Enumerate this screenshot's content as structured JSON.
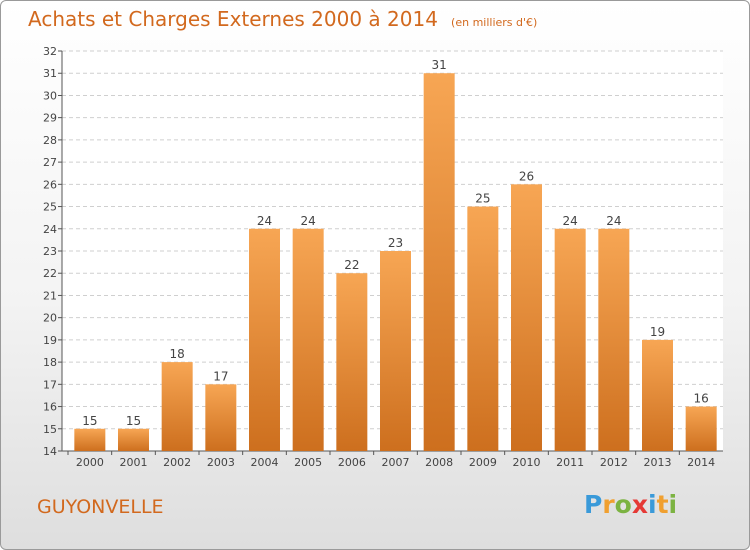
{
  "title": "Achats et Charges Externes 2000 à 2014",
  "subtitle": "(en milliers d'€)",
  "commune": "GUYONVELLE",
  "logo": {
    "letters": [
      "P",
      "r",
      "o",
      "x",
      "i",
      "t",
      "i"
    ],
    "colors": [
      "#3a9ad9",
      "#f0a030",
      "#7cb342",
      "#e53935",
      "#3a9ad9",
      "#f0a030",
      "#7cb342"
    ]
  },
  "colors": {
    "accent": "#d2691e",
    "bar_top": "#f7a654",
    "bar_bottom": "#cd6f1e"
  },
  "chart_data": {
    "type": "bar",
    "title": "Achats et Charges Externes 2000 à 2014",
    "subtitle": "(en milliers d'€)",
    "categories": [
      "2000",
      "2001",
      "2002",
      "2003",
      "2004",
      "2005",
      "2006",
      "2007",
      "2008",
      "2009",
      "2010",
      "2011",
      "2012",
      "2013",
      "2014"
    ],
    "values": [
      15,
      15,
      18,
      17,
      24,
      24,
      22,
      23,
      31,
      25,
      26,
      24,
      24,
      19,
      16
    ],
    "ylim": [
      14,
      32
    ],
    "yticks": [
      14,
      15,
      16,
      17,
      18,
      19,
      20,
      21,
      22,
      23,
      24,
      25,
      26,
      27,
      28,
      29,
      30,
      31,
      32
    ],
    "grid": true,
    "legend": "none"
  }
}
